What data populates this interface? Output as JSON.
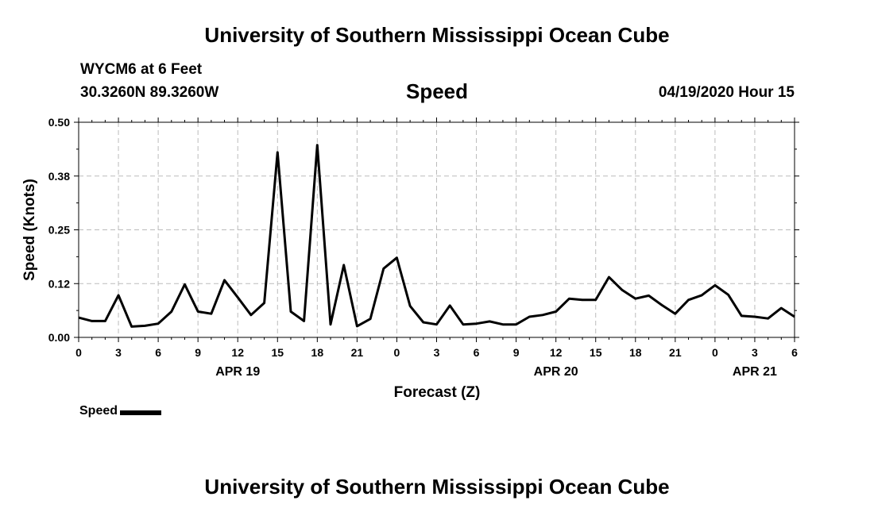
{
  "header": {
    "title": "University of Southern Mississippi Ocean Cube",
    "station": "WYCM6 at 6 Feet",
    "coords": "30.3260N 89.3260W",
    "variable": "Speed",
    "datetime": "04/19/2020 Hour 15"
  },
  "footer": {
    "title": "University of Southern Mississippi Ocean Cube"
  },
  "legend": {
    "label": "Speed"
  },
  "chart_data": {
    "type": "line",
    "title": "Speed",
    "xlabel": "Forecast (Z)",
    "ylabel": "Speed (Knots)",
    "ylim": [
      0,
      0.5
    ],
    "xlim": [
      0,
      54
    ],
    "grid": true,
    "legend_position": "bottom-left",
    "line_color": "#000000",
    "y_ticks": [
      0,
      0.125,
      0.25,
      0.375,
      0.5
    ],
    "y_tick_labels": [
      "0.00",
      "0.12",
      "0.25",
      "0.38",
      "0.50"
    ],
    "x_ticks": [
      0,
      3,
      6,
      9,
      12,
      15,
      18,
      21,
      24,
      27,
      30,
      33,
      36,
      39,
      42,
      45,
      48,
      51,
      54
    ],
    "x_tick_labels": [
      "0",
      "3",
      "6",
      "9",
      "12",
      "15",
      "18",
      "21",
      "0",
      "3",
      "6",
      "9",
      "12",
      "15",
      "18",
      "21",
      "0",
      "3",
      "6"
    ],
    "date_labels": [
      {
        "x": 12,
        "label": "APR 19"
      },
      {
        "x": 36,
        "label": "APR 20"
      },
      {
        "x": 51,
        "label": "APR 21"
      }
    ],
    "series": [
      {
        "name": "Speed",
        "x": [
          0,
          1,
          2,
          3,
          4,
          5,
          6,
          7,
          8,
          9,
          10,
          11,
          12,
          13,
          14,
          15,
          16,
          17,
          18,
          19,
          20,
          21,
          22,
          23,
          24,
          25,
          26,
          27,
          28,
          29,
          30,
          31,
          32,
          33,
          34,
          35,
          36,
          37,
          38,
          39,
          40,
          41,
          42,
          43,
          44,
          45,
          46,
          47,
          48,
          49,
          50,
          51,
          52,
          53,
          54
        ],
        "values": [
          0.046,
          0.038,
          0.038,
          0.098,
          0.025,
          0.027,
          0.032,
          0.06,
          0.123,
          0.06,
          0.055,
          0.133,
          0.093,
          0.052,
          0.08,
          0.43,
          0.06,
          0.038,
          0.447,
          0.03,
          0.168,
          0.026,
          0.043,
          0.16,
          0.185,
          0.073,
          0.035,
          0.03,
          0.074,
          0.03,
          0.032,
          0.037,
          0.03,
          0.03,
          0.048,
          0.052,
          0.06,
          0.09,
          0.087,
          0.087,
          0.14,
          0.11,
          0.09,
          0.097,
          0.075,
          0.055,
          0.087,
          0.098,
          0.121,
          0.099,
          0.05,
          0.048,
          0.044,
          0.068,
          0.048
        ]
      }
    ]
  }
}
